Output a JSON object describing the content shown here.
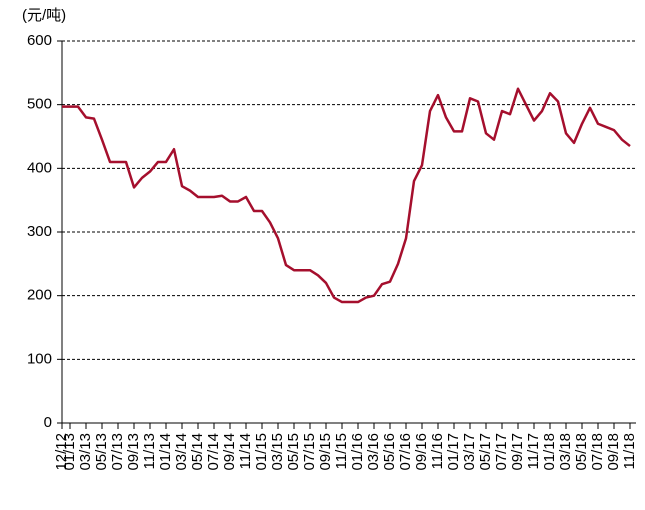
{
  "chart_data": {
    "type": "line",
    "y_unit_label": "(元/吨)",
    "categories": [
      "12/12",
      "01/13",
      null,
      "03/13",
      null,
      "05/13",
      null,
      "07/13",
      null,
      "09/13",
      null,
      "11/13",
      null,
      "01/14",
      null,
      "03/14",
      null,
      "05/14",
      null,
      "07/14",
      null,
      "09/14",
      null,
      "11/14",
      null,
      "01/15",
      null,
      "03/15",
      null,
      "05/15",
      null,
      "07/15",
      null,
      "09/15",
      null,
      "11/15",
      null,
      "01/16",
      null,
      "03/16",
      null,
      "05/16",
      null,
      "07/16",
      null,
      "09/16",
      null,
      "11/16",
      null,
      "01/17",
      null,
      "03/17",
      null,
      "05/17",
      null,
      "07/17",
      null,
      "09/17",
      null,
      "11/17",
      null,
      "01/18",
      null,
      "03/18",
      null,
      "05/18",
      null,
      "07/18",
      null,
      "09/18",
      null,
      "11/18"
    ],
    "series": [
      {
        "color": "#a50f2d",
        "values": [
          497,
          497,
          497,
          480,
          478,
          445,
          410,
          410,
          410,
          370,
          385,
          395,
          410,
          410,
          430,
          372,
          365,
          355,
          355,
          355,
          357,
          348,
          348,
          355,
          333,
          333,
          315,
          290,
          248,
          240,
          240,
          240,
          232,
          220,
          197,
          190,
          190,
          190,
          197,
          200,
          218,
          222,
          250,
          290,
          380,
          405,
          490,
          515,
          480,
          458,
          458,
          510,
          505,
          455,
          445,
          490,
          485,
          525,
          500,
          475,
          490,
          518,
          505,
          455,
          440,
          470,
          495,
          470,
          465,
          460,
          445,
          435
        ]
      }
    ],
    "ylim": [
      0,
      600
    ],
    "yticks": [
      0,
      100,
      200,
      300,
      400,
      500,
      600
    ],
    "grid": true
  }
}
